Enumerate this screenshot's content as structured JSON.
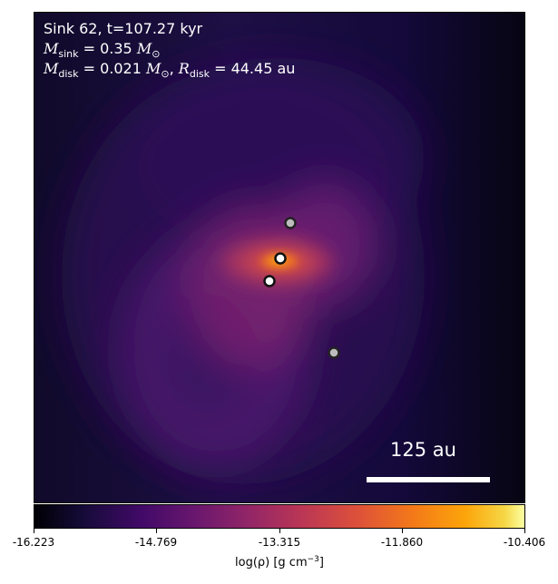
{
  "overlay": {
    "title": "Sink 62, t=107.27 kyr",
    "msink_symbol": "M",
    "msink_sub": "sink",
    "msink_value": " = 0.35",
    "msink_unit": "M",
    "msink_unit_sub": "⊙",
    "mdisk_symbol": "M",
    "mdisk_sub": "disk",
    "mdisk_value": " = 0.021",
    "mdisk_unit": "M",
    "mdisk_unit_sub": "⊙",
    "sep": ", ",
    "rdisk_symbol": "R",
    "rdisk_sub": "disk",
    "rdisk_value": " = 44.45 au"
  },
  "scalebar": {
    "label": "125 au"
  },
  "colorbar": {
    "ticks": [
      "-16.223",
      "-14.769",
      "-13.315",
      "-11.860",
      "-10.406"
    ],
    "label_main": "log(ρ) [g cm",
    "label_sup": "−3",
    "label_end": "]",
    "colormap": "inferno"
  },
  "sinks": [
    {
      "name": "sink-primary",
      "fill": "#ffffff"
    },
    {
      "name": "sink-secondary",
      "fill": "#ffffff"
    },
    {
      "name": "sink-upper",
      "fill": "#bdbdbd"
    },
    {
      "name": "sink-lower",
      "fill": "#bdbdbd"
    }
  ]
}
